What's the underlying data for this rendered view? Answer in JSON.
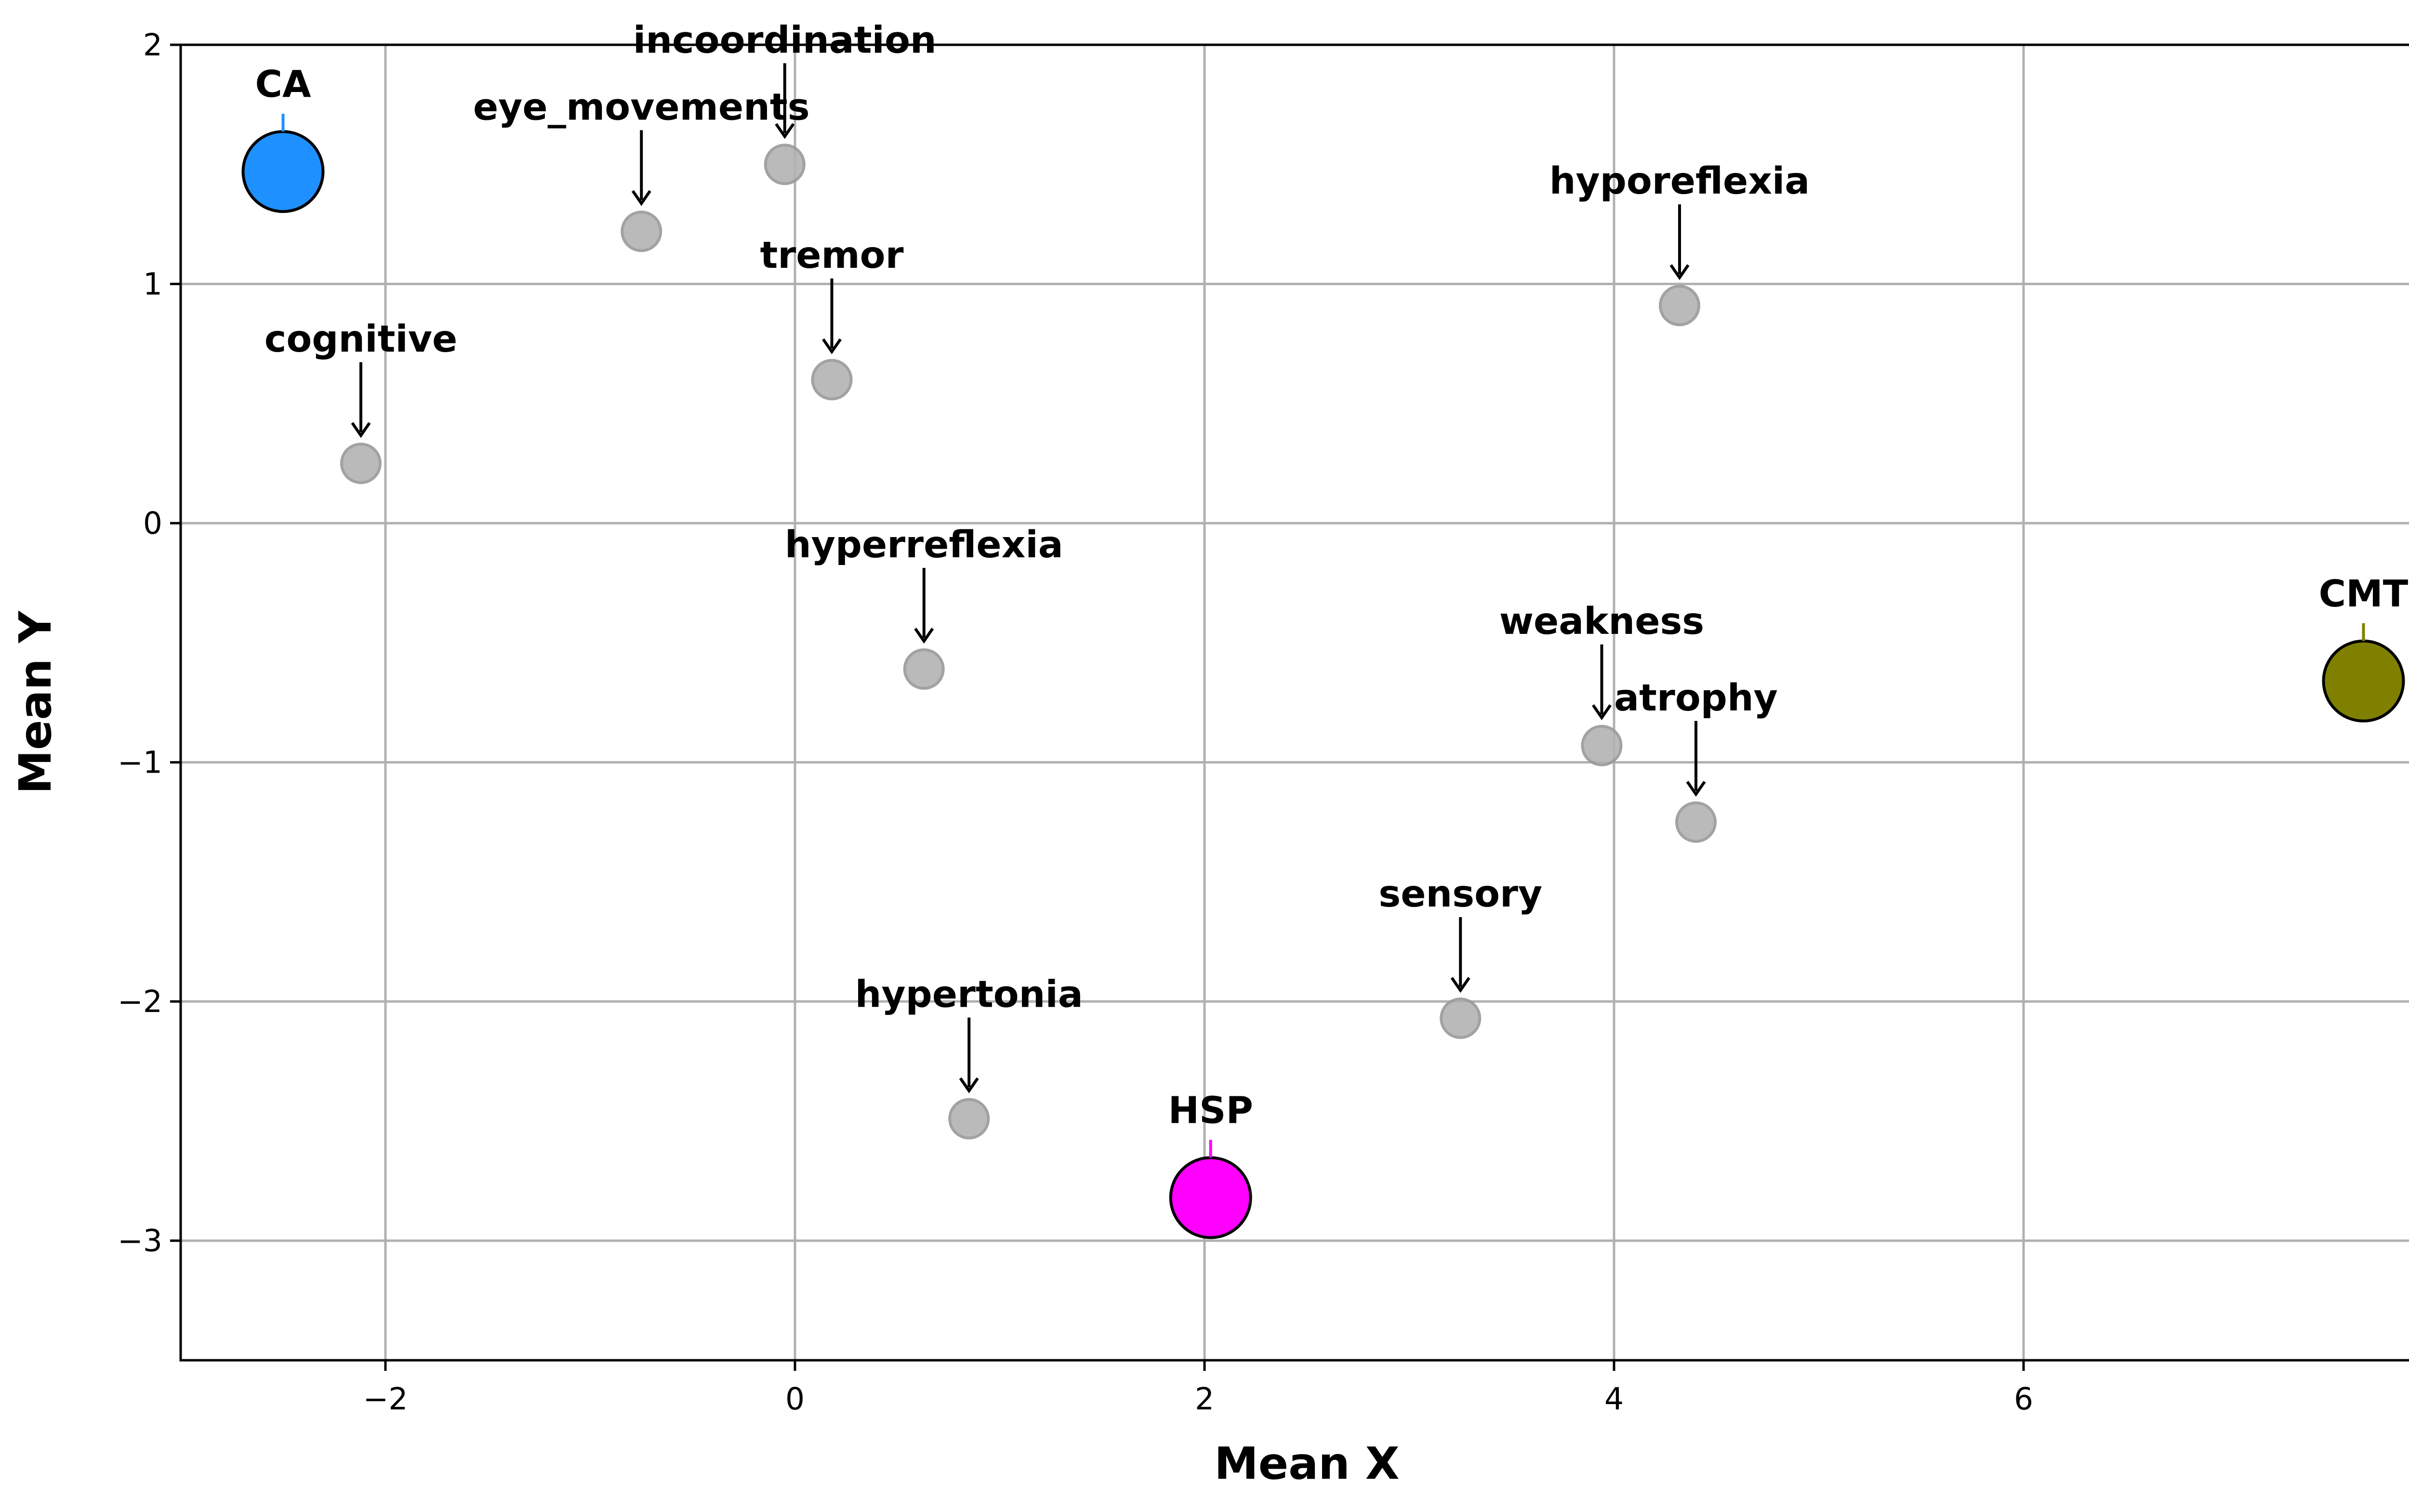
{
  "chart_data": {
    "type": "scatter",
    "title": "",
    "xlabel": "Mean X",
    "ylabel": "Mean Y",
    "xlim": [
      -3,
      8
    ],
    "ylim": [
      -3.5,
      2
    ],
    "xticks": [
      -2,
      0,
      2,
      4,
      6,
      8
    ],
    "yticks": [
      -3,
      -2,
      -1,
      0,
      1,
      2
    ],
    "grid": true,
    "series": [
      {
        "points": [
          {
            "label": "incoordination",
            "x": -0.05,
            "y": 1.5
          },
          {
            "label": "eye_movements",
            "x": -0.75,
            "y": 1.22
          },
          {
            "label": "tremor",
            "x": 0.18,
            "y": 0.6
          },
          {
            "label": "cognitive",
            "x": -2.12,
            "y": 0.25
          },
          {
            "label": "hyporeflexia",
            "x": 4.32,
            "y": 0.91
          },
          {
            "label": "hyperreflexia",
            "x": 0.63,
            "y": -0.61
          },
          {
            "label": "weakness",
            "x": 3.94,
            "y": -0.93
          },
          {
            "label": "atrophy",
            "x": 4.4,
            "y": -1.25
          },
          {
            "label": "sensory",
            "x": 3.25,
            "y": -2.07
          },
          {
            "label": "hypertonia",
            "x": 0.85,
            "y": -2.49
          }
        ],
        "color": "#b3b3b3"
      },
      {
        "points": [
          {
            "label": "CA",
            "x": -2.5,
            "y": 1.47,
            "color": "#1e90ff"
          },
          {
            "label": "CMT",
            "x": 7.66,
            "y": -0.66,
            "color": "#808000"
          },
          {
            "label": "HSP",
            "x": 2.03,
            "y": -2.82,
            "color": "#ff00ff"
          }
        ]
      }
    ]
  }
}
